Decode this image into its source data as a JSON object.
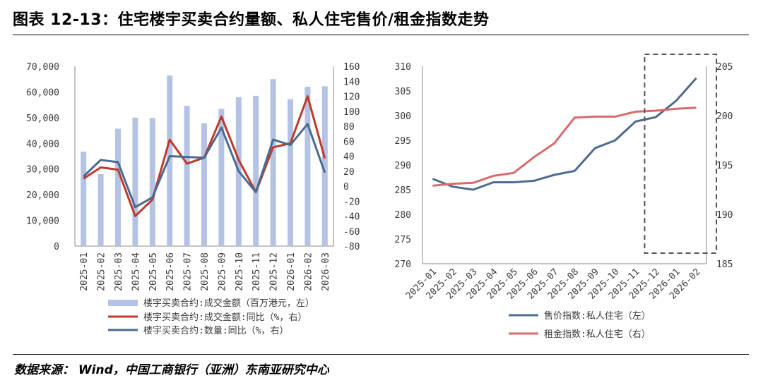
{
  "title": "图表 12-13：住宅楼宇买卖合约量额、私人住宅售价/租金指数走势",
  "source": "数据来源： Wind，中国工商银行（亚洲）东南亚研究中心",
  "colors": {
    "bar": "#b4c3e4",
    "red": "#c0392b",
    "blue": "#4a6b8f",
    "pink": "#d56b6b",
    "navy": "#4e6b91"
  },
  "chart_data": [
    {
      "type": "bar",
      "categories": [
        "2025-01",
        "2025-02",
        "2025-03",
        "2025-04",
        "2025-05",
        "2025-06",
        "2025-07",
        "2025-08",
        "2025-09",
        "2025-10",
        "2025-11",
        "2025-12",
        "2026-01",
        "2026-02",
        "2026-03"
      ],
      "y_left": {
        "ylim": [
          0,
          70000
        ],
        "ticks": [
          "0",
          "10,000",
          "20,000",
          "30,000",
          "40,000",
          "50,000",
          "60,000",
          "70,000"
        ],
        "tick_values": [
          0,
          10000,
          20000,
          30000,
          40000,
          50000,
          60000,
          70000
        ]
      },
      "y_right": {
        "ylim": [
          -80,
          160
        ],
        "ticks": [
          "-80",
          "-60",
          "-40",
          "-20",
          "0",
          "20",
          "40",
          "60",
          "80",
          "100",
          "120",
          "140",
          "160"
        ],
        "tick_values": [
          -80,
          -60,
          -40,
          -20,
          0,
          20,
          40,
          60,
          80,
          100,
          120,
          140,
          160
        ]
      },
      "series": [
        {
          "name": "楼宇买卖合约:成交金额（百万港元，左）",
          "type": "bar",
          "axis": "left",
          "values": [
            36800,
            28000,
            45700,
            50000,
            49900,
            66400,
            54600,
            47800,
            53400,
            58000,
            58500,
            65000,
            57200,
            62000,
            62200
          ]
        },
        {
          "name": "楼宇买卖合约:成交金额:同比（%，右）",
          "type": "line",
          "axis": "right",
          "values": [
            10,
            25,
            22,
            -40,
            -18,
            62,
            30,
            38,
            93,
            35,
            -8,
            52,
            57,
            120,
            37
          ]
        },
        {
          "name": "楼宇买卖合约:数量:同比（%，右）",
          "type": "line",
          "axis": "right",
          "values": [
            13,
            35,
            32,
            -28,
            -15,
            40,
            39,
            38,
            78,
            20,
            -8,
            62,
            55,
            83,
            18
          ]
        }
      ],
      "legend_position": "bottom"
    },
    {
      "type": "line",
      "categories": [
        "2025-01",
        "2025-02",
        "2025-03",
        "2025-04",
        "2025-05",
        "2025-06",
        "2025-07",
        "2025-08",
        "2025-09",
        "2025-10",
        "2025-11",
        "2025-12",
        "2026-01",
        "2026-02"
      ],
      "y_left": {
        "ylim": [
          270,
          310
        ],
        "ticks": [
          "270",
          "275",
          "280",
          "285",
          "290",
          "295",
          "300",
          "305",
          "310"
        ],
        "tick_values": [
          270,
          275,
          280,
          285,
          290,
          295,
          300,
          305,
          310
        ]
      },
      "y_right": {
        "ylim": [
          185,
          205
        ],
        "ticks": [
          "185",
          "190",
          "195",
          "200",
          "205"
        ],
        "tick_values": [
          185,
          190,
          195,
          200,
          205
        ]
      },
      "series": [
        {
          "name": "售价指数:私人住宅（左）",
          "axis": "left",
          "values": [
            287.2,
            285.6,
            285.0,
            286.5,
            286.5,
            286.8,
            288.0,
            288.8,
            293.4,
            295.0,
            298.8,
            299.7,
            303.0,
            307.6
          ]
        },
        {
          "name": "租金指数:私人住宅（右）",
          "axis": "right",
          "values": [
            192.9,
            193.1,
            193.2,
            193.9,
            194.2,
            195.8,
            197.2,
            199.8,
            199.9,
            199.9,
            200.4,
            200.5,
            200.7,
            200.8
          ]
        }
      ],
      "highlight": {
        "from": "2025-12",
        "to": "2026-02",
        "style": "dashed-box"
      },
      "legend_position": "bottom"
    }
  ]
}
